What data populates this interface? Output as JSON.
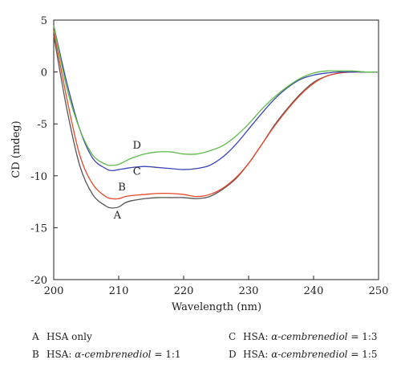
{
  "chart_data": {
    "type": "line",
    "title": "",
    "xlabel": "Wavelength (nm)",
    "ylabel": "CD (mdeg)",
    "xlim": [
      200,
      250
    ],
    "ylim": [
      -20,
      5
    ],
    "xticks": [
      200,
      210,
      220,
      230,
      240,
      250
    ],
    "yticks": [
      5,
      0,
      -5,
      -10,
      -15,
      -20
    ],
    "grid": false,
    "series": [
      {
        "name": "A",
        "color": "#555555",
        "x": [
          200,
          202,
          204,
          206,
          208,
          209,
          210,
          211,
          212,
          214,
          216,
          218,
          220,
          222,
          224,
          226,
          228,
          230,
          232,
          234,
          236,
          238,
          240,
          242,
          244,
          246,
          248,
          250
        ],
        "y": [
          3.5,
          -3.5,
          -9.0,
          -11.8,
          -12.9,
          -13.1,
          -13.0,
          -12.6,
          -12.4,
          -12.2,
          -12.1,
          -12.1,
          -12.1,
          -12.2,
          -12.0,
          -11.3,
          -10.3,
          -8.8,
          -7.0,
          -5.1,
          -3.5,
          -2.1,
          -1.0,
          -0.4,
          -0.1,
          0.0,
          0.0,
          0.0
        ]
      },
      {
        "name": "B",
        "color": "#e8472b",
        "x": [
          200,
          202,
          204,
          206,
          208,
          209,
          210,
          211,
          212,
          214,
          216,
          218,
          220,
          222,
          224,
          226,
          228,
          230,
          232,
          234,
          236,
          238,
          240,
          242,
          244,
          246,
          248,
          250
        ],
        "y": [
          4.0,
          -2.5,
          -8.0,
          -10.8,
          -12.0,
          -12.2,
          -12.2,
          -12.0,
          -11.9,
          -11.8,
          -11.7,
          -11.7,
          -11.8,
          -12.0,
          -11.8,
          -11.2,
          -10.2,
          -8.8,
          -7.0,
          -5.2,
          -3.6,
          -2.2,
          -1.1,
          -0.4,
          -0.1,
          0.0,
          0.0,
          0.0
        ]
      },
      {
        "name": "C",
        "color": "#3a44b4",
        "x": [
          200,
          202,
          204,
          206,
          208,
          209,
          210,
          211,
          212,
          214,
          216,
          218,
          220,
          222,
          224,
          226,
          228,
          230,
          232,
          234,
          236,
          238,
          240,
          242,
          244,
          246,
          248,
          250
        ],
        "y": [
          4.5,
          -1.0,
          -5.5,
          -8.3,
          -9.3,
          -9.5,
          -9.4,
          -9.3,
          -9.2,
          -9.1,
          -9.2,
          -9.3,
          -9.4,
          -9.3,
          -9.0,
          -8.2,
          -7.0,
          -5.5,
          -4.0,
          -2.6,
          -1.5,
          -0.7,
          -0.3,
          -0.1,
          0.0,
          0.0,
          0.0,
          0.0
        ]
      },
      {
        "name": "D",
        "color": "#5dbb4a",
        "x": [
          200,
          202,
          204,
          206,
          208,
          209,
          210,
          211,
          212,
          214,
          216,
          218,
          220,
          222,
          224,
          226,
          228,
          230,
          232,
          234,
          236,
          238,
          240,
          242,
          244,
          246,
          248,
          250
        ],
        "y": [
          4.5,
          -1.5,
          -5.5,
          -8.0,
          -8.9,
          -9.0,
          -8.9,
          -8.6,
          -8.3,
          -7.9,
          -7.7,
          -7.7,
          -7.9,
          -7.9,
          -7.6,
          -7.1,
          -6.2,
          -5.0,
          -3.6,
          -2.4,
          -1.4,
          -0.6,
          -0.1,
          0.1,
          0.1,
          0.1,
          0.0,
          0.0
        ]
      }
    ],
    "curve_labels": [
      {
        "text": "A",
        "x": 209.8,
        "y": -14.1
      },
      {
        "text": "B",
        "x": 210.5,
        "y": -11.4
      },
      {
        "text": "C",
        "x": 212.8,
        "y": -9.9
      },
      {
        "text": "D",
        "x": 212.8,
        "y": -7.4
      }
    ]
  },
  "legend": {
    "items": [
      {
        "code": "A",
        "text": "HSA only",
        "italic": "",
        "suffix": ""
      },
      {
        "code": "B",
        "text": "HSA: ",
        "italic": "α-cembrenediol",
        "suffix": " = 1:1"
      },
      {
        "code": "C",
        "text": "HSA: ",
        "italic": "α-cembrenediol",
        "suffix": " = 1:3"
      },
      {
        "code": "D",
        "text": "HSA: ",
        "italic": "α-cembrenediol",
        "suffix": " = 1:5"
      }
    ]
  }
}
